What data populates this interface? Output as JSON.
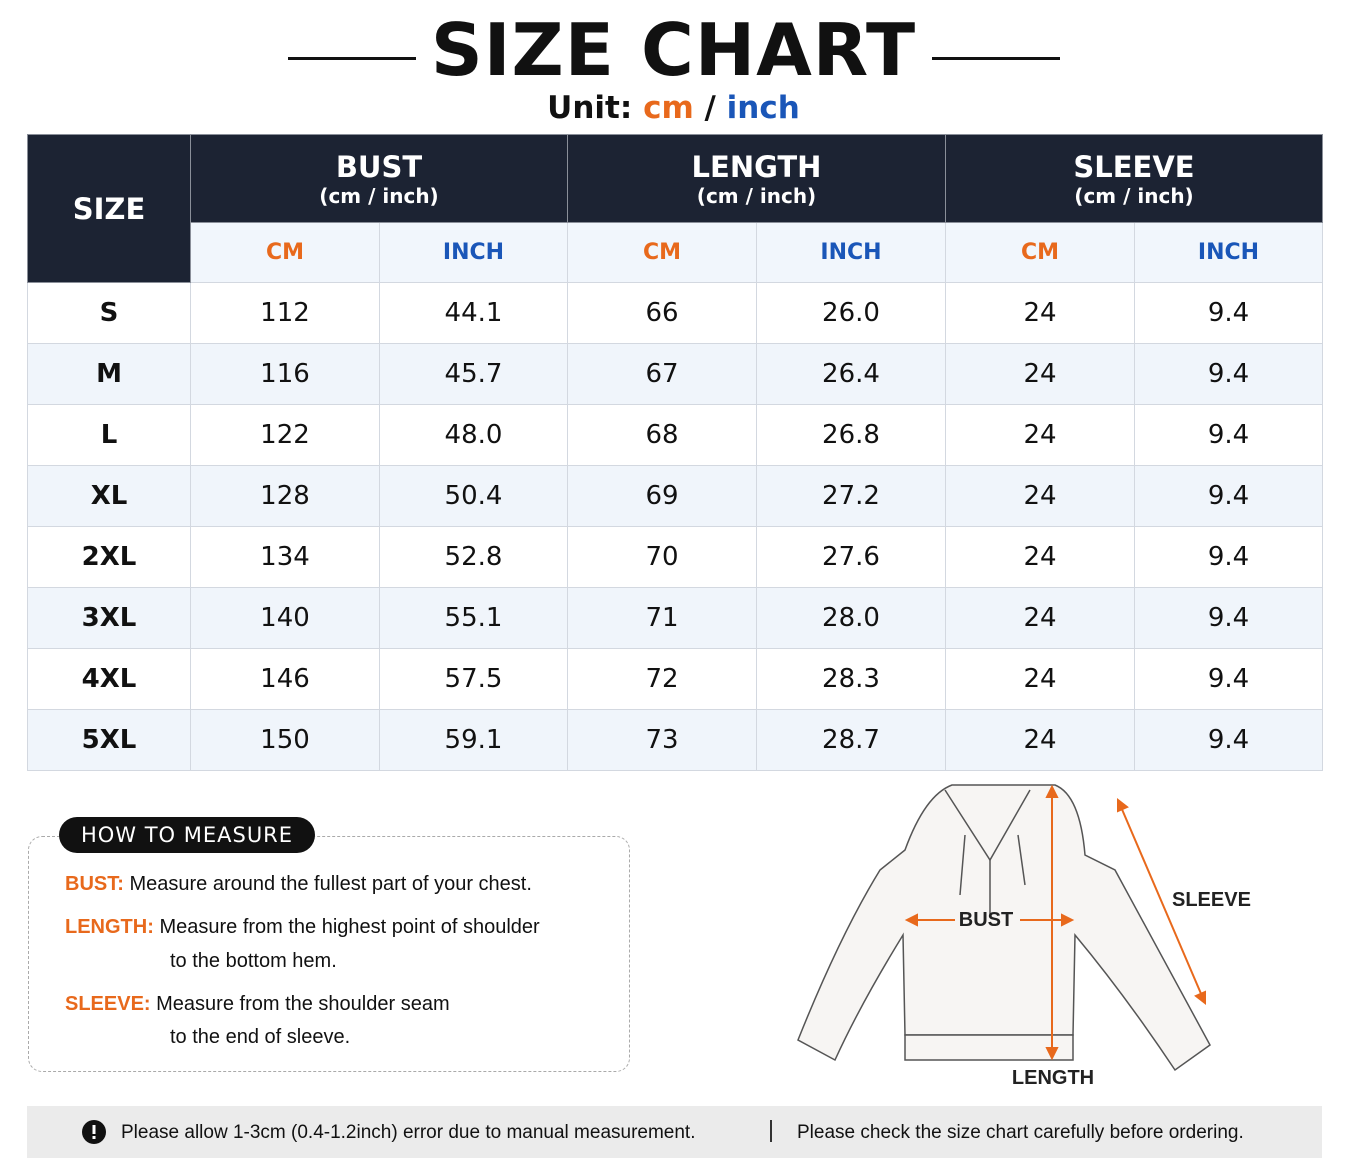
{
  "header": {
    "title": "SIZE CHART",
    "unit_label": "Unit:",
    "unit_cm": "cm",
    "unit_sep": "/",
    "unit_inch": "inch"
  },
  "table": {
    "size_header": "SIZE",
    "groups": [
      {
        "name": "BUST",
        "sub": "(cm / inch)",
        "units": [
          "CM",
          "INCH"
        ]
      },
      {
        "name": "LENGTH",
        "sub": "(cm / inch)",
        "units": [
          "CM",
          "INCH"
        ]
      },
      {
        "name": "SLEEVE",
        "sub": "(cm / inch)",
        "units": [
          "CM",
          "INCH"
        ]
      }
    ],
    "rows": [
      [
        "S",
        "112",
        "44.1",
        "66",
        "26.0",
        "24",
        "9.4"
      ],
      [
        "M",
        "116",
        "45.7",
        "67",
        "26.4",
        "24",
        "9.4"
      ],
      [
        "L",
        "122",
        "48.0",
        "68",
        "26.8",
        "24",
        "9.4"
      ],
      [
        "XL",
        "128",
        "50.4",
        "69",
        "27.2",
        "24",
        "9.4"
      ],
      [
        "2XL",
        "134",
        "52.8",
        "70",
        "27.6",
        "24",
        "9.4"
      ],
      [
        "3XL",
        "140",
        "55.1",
        "71",
        "28.0",
        "24",
        "9.4"
      ],
      [
        "4XL",
        "146",
        "57.5",
        "72",
        "28.3",
        "24",
        "9.4"
      ],
      [
        "5XL",
        "150",
        "59.1",
        "73",
        "28.7",
        "24",
        "9.4"
      ]
    ]
  },
  "measure": {
    "title": "HOW TO MEASURE",
    "items": [
      {
        "term": "BUST:",
        "lines": [
          "Measure around the fullest part of your chest."
        ]
      },
      {
        "term": "LENGTH:",
        "lines": [
          "Measure from the highest point of shoulder",
          "to the bottom hem."
        ]
      },
      {
        "term": "SLEEVE:",
        "lines": [
          "Measure from the shoulder seam",
          "to the end of sleeve."
        ]
      }
    ]
  },
  "diagram": {
    "bust": "BUST",
    "length": "LENGTH",
    "sleeve": "SLEEVE"
  },
  "footer": {
    "note1": "Please allow 1-3cm (0.4-1.2inch) error due to manual measurement.",
    "note2": "Please check the size chart carefully before ordering."
  }
}
